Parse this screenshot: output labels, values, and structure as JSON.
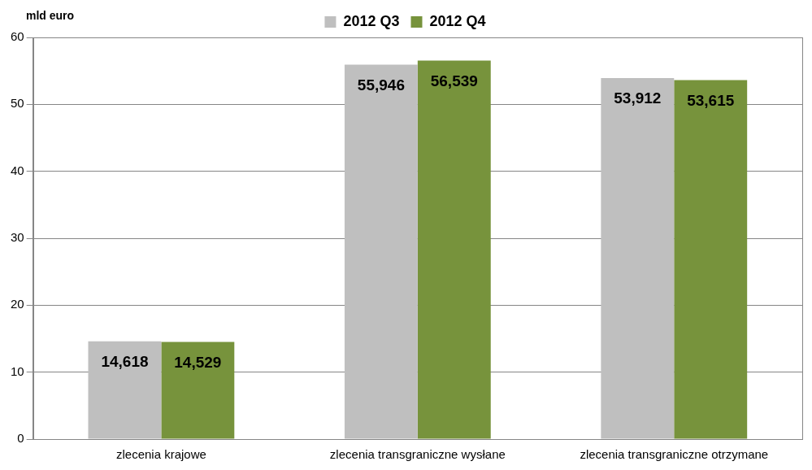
{
  "chart_data": {
    "type": "bar",
    "y_label": "mld euro",
    "categories": [
      "zlecenia krajowe",
      "zlecenia transgraniczne wysłane",
      "zlecenia transgraniczne otrzymane"
    ],
    "series": [
      {
        "name": "2012 Q3",
        "color": "#bfbfbf",
        "values": [
          14.618,
          55.946,
          53.912
        ],
        "value_labels": [
          "14,618",
          "55,946",
          "53,912"
        ]
      },
      {
        "name": "2012 Q4",
        "color": "#77933c",
        "values": [
          14.529,
          56.539,
          53.615
        ],
        "value_labels": [
          "14,529",
          "56,539",
          "53,615"
        ]
      }
    ],
    "ylim": [
      0,
      60
    ],
    "yticks": [
      0,
      10,
      20,
      30,
      40,
      50,
      60
    ],
    "grid": true,
    "legend": "top",
    "data_labels": true
  }
}
